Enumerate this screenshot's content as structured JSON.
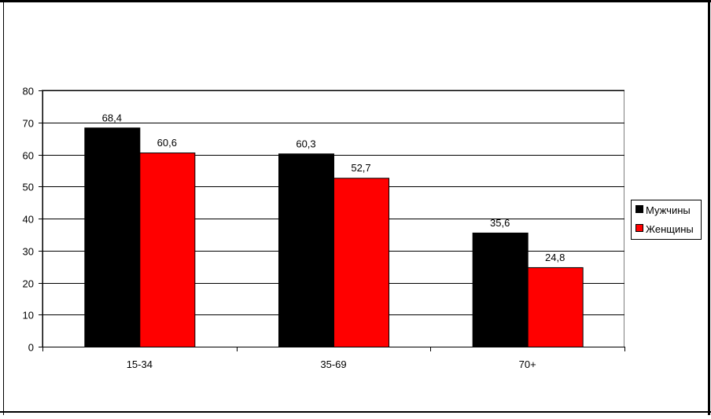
{
  "chart_data": {
    "type": "bar",
    "categories": [
      "15-34",
      "35-69",
      "70+"
    ],
    "series": [
      {
        "name": "Мужчины",
        "values": [
          68.4,
          60.3,
          35.6
        ],
        "labels": [
          "68,4",
          "60,3",
          "35,6"
        ],
        "color": "#000000"
      },
      {
        "name": "Женщины",
        "values": [
          60.6,
          52.7,
          24.8
        ],
        "labels": [
          "60,6",
          "52,7",
          "24,8"
        ],
        "color": "#ff0000"
      }
    ],
    "ylim": [
      0,
      80
    ],
    "yticks": [
      0,
      10,
      20,
      30,
      40,
      50,
      60,
      70,
      80
    ],
    "grid": true,
    "legend_position": "right"
  }
}
